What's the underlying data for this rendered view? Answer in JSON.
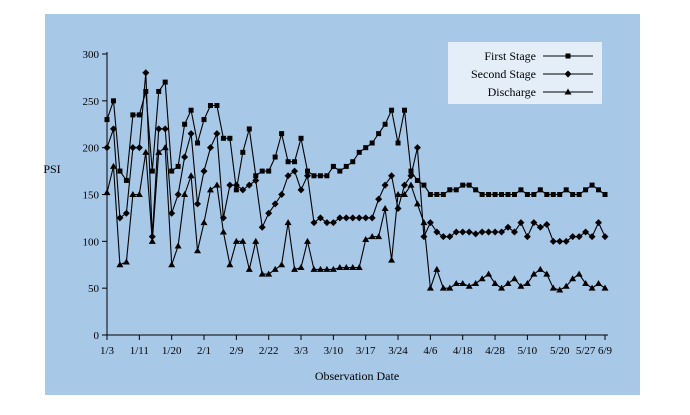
{
  "colors": {
    "plot_bg": "#a8c8e8",
    "line": "#000000",
    "legend_bg": "#e4eef8"
  },
  "chart_data": {
    "type": "line",
    "title": "",
    "xlabel": "Observation Date",
    "ylabel": "PSI",
    "ylim": [
      0,
      300
    ],
    "yticks": [
      0,
      50,
      100,
      150,
      200,
      250,
      300
    ],
    "n_points": 78,
    "xticks": [
      {
        "index": 0,
        "label": "1/3"
      },
      {
        "index": 5,
        "label": "1/11"
      },
      {
        "index": 10,
        "label": "1/20"
      },
      {
        "index": 15,
        "label": "2/1"
      },
      {
        "index": 20,
        "label": "2/9"
      },
      {
        "index": 25,
        "label": "2/22"
      },
      {
        "index": 30,
        "label": "3/3"
      },
      {
        "index": 35,
        "label": "3/10"
      },
      {
        "index": 40,
        "label": "3/17"
      },
      {
        "index": 45,
        "label": "3/24"
      },
      {
        "index": 50,
        "label": "4/6"
      },
      {
        "index": 55,
        "label": "4/18"
      },
      {
        "index": 60,
        "label": "4/28"
      },
      {
        "index": 65,
        "label": "5/10"
      },
      {
        "index": 70,
        "label": "5/20"
      },
      {
        "index": 74,
        "label": "5/27"
      },
      {
        "index": 77,
        "label": "6/9"
      }
    ],
    "legend": {
      "position": "top-right"
    },
    "series": [
      {
        "name": "First Stage",
        "marker": "square",
        "values": [
          230,
          250,
          175,
          165,
          235,
          235,
          260,
          175,
          260,
          270,
          175,
          180,
          225,
          240,
          205,
          230,
          245,
          245,
          210,
          210,
          155,
          195,
          220,
          170,
          175,
          175,
          190,
          215,
          185,
          185,
          210,
          175,
          170,
          170,
          170,
          180,
          175,
          180,
          185,
          195,
          200,
          205,
          215,
          225,
          240,
          205,
          240,
          175,
          165,
          160,
          150,
          150,
          150,
          155,
          155,
          160,
          160,
          155,
          150,
          150,
          150,
          150,
          150,
          150,
          155,
          150,
          150,
          155,
          150,
          150,
          150,
          155,
          150,
          150,
          155,
          160,
          155,
          150
        ]
      },
      {
        "name": "Second Stage",
        "marker": "diamond",
        "values": [
          200,
          220,
          125,
          130,
          200,
          200,
          280,
          105,
          220,
          220,
          130,
          150,
          190,
          215,
          140,
          175,
          200,
          215,
          125,
          160,
          160,
          155,
          160,
          165,
          115,
          130,
          140,
          150,
          170,
          175,
          155,
          170,
          120,
          125,
          120,
          120,
          125,
          125,
          125,
          125,
          125,
          125,
          145,
          160,
          170,
          135,
          160,
          170,
          200,
          105,
          120,
          110,
          105,
          105,
          110,
          110,
          110,
          108,
          110,
          110,
          110,
          110,
          115,
          110,
          120,
          105,
          120,
          115,
          118,
          100,
          100,
          100,
          105,
          105,
          110,
          105,
          120,
          105
        ]
      },
      {
        "name": "Discharge",
        "marker": "triangle",
        "values": [
          152,
          180,
          75,
          78,
          150,
          150,
          195,
          100,
          195,
          200,
          75,
          95,
          150,
          170,
          90,
          120,
          155,
          160,
          110,
          75,
          100,
          100,
          70,
          100,
          65,
          65,
          70,
          75,
          120,
          70,
          72,
          100,
          70,
          70,
          70,
          70,
          72,
          72,
          72,
          72,
          102,
          105,
          105,
          135,
          80,
          150,
          150,
          160,
          140,
          120,
          50,
          70,
          50,
          50,
          55,
          55,
          52,
          55,
          60,
          65,
          55,
          50,
          55,
          60,
          52,
          55,
          65,
          70,
          65,
          50,
          48,
          52,
          60,
          65,
          55,
          50,
          55,
          50
        ]
      }
    ]
  }
}
